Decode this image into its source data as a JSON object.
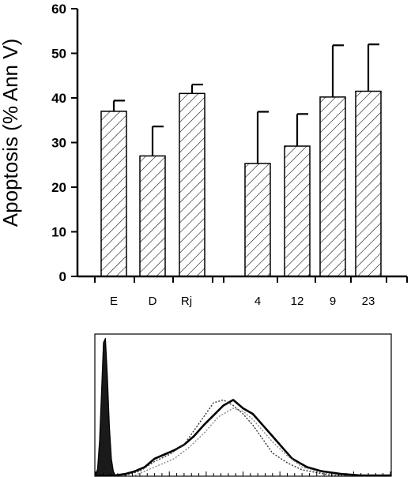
{
  "chart_data": [
    {
      "type": "bar",
      "title": "",
      "xlabel": "",
      "ylabel": "Apoptosis (% Ann V)",
      "ylim": [
        0,
        60
      ],
      "yticks": [
        0,
        10,
        20,
        30,
        40,
        50,
        60
      ],
      "grid": false,
      "legend": "none",
      "pattern": "diagonal-hatch",
      "categories": [
        "E",
        "D",
        "Rj",
        "4",
        "12",
        "9",
        "23"
      ],
      "groups": [
        [
          "E",
          "D",
          "Rj"
        ],
        [
          "4",
          "12",
          "9",
          "23"
        ]
      ],
      "values": [
        37,
        27,
        41,
        25.3,
        29.2,
        40.2,
        41.5
      ],
      "error_upper": [
        39.4,
        33.6,
        43,
        36.9,
        36.4,
        51.8,
        52
      ]
    },
    {
      "type": "area",
      "title": "",
      "xlabel": "",
      "ylabel": "",
      "legend": "none",
      "series": [
        {
          "style": "filled-dark",
          "x": [
            0,
            2,
            4,
            6,
            8,
            10,
            12,
            14,
            16,
            18,
            20,
            22
          ],
          "y": [
            0,
            5,
            25,
            60,
            95,
            98,
            70,
            35,
            12,
            3,
            0,
            0
          ]
        },
        {
          "style": "thick-black",
          "x": [
            20,
            30,
            40,
            50,
            60,
            70,
            80,
            90,
            100,
            110,
            120,
            130,
            140,
            150,
            160,
            170,
            180,
            190,
            200,
            215,
            230,
            250,
            270,
            300
          ],
          "y": [
            0,
            1,
            3,
            6,
            12,
            15,
            18,
            22,
            28,
            36,
            43,
            50,
            54,
            48,
            44,
            36,
            28,
            20,
            12,
            6,
            3,
            1,
            0,
            0
          ]
        },
        {
          "style": "dotted-dark",
          "x": [
            30,
            45,
            60,
            75,
            90,
            100,
            110,
            120,
            130,
            140,
            150,
            160,
            170,
            180,
            195,
            210,
            225,
            240,
            260
          ],
          "y": [
            0,
            3,
            10,
            15,
            22,
            32,
            42,
            52,
            54,
            50,
            44,
            36,
            26,
            16,
            9,
            4,
            2,
            0,
            0
          ]
        },
        {
          "style": "dotted-light",
          "x": [
            40,
            60,
            80,
            95,
            110,
            125,
            140,
            150,
            160,
            170,
            180,
            195,
            210,
            230,
            250
          ],
          "y": [
            0,
            6,
            12,
            20,
            30,
            42,
            48,
            46,
            40,
            32,
            24,
            14,
            6,
            2,
            0
          ]
        }
      ]
    }
  ]
}
